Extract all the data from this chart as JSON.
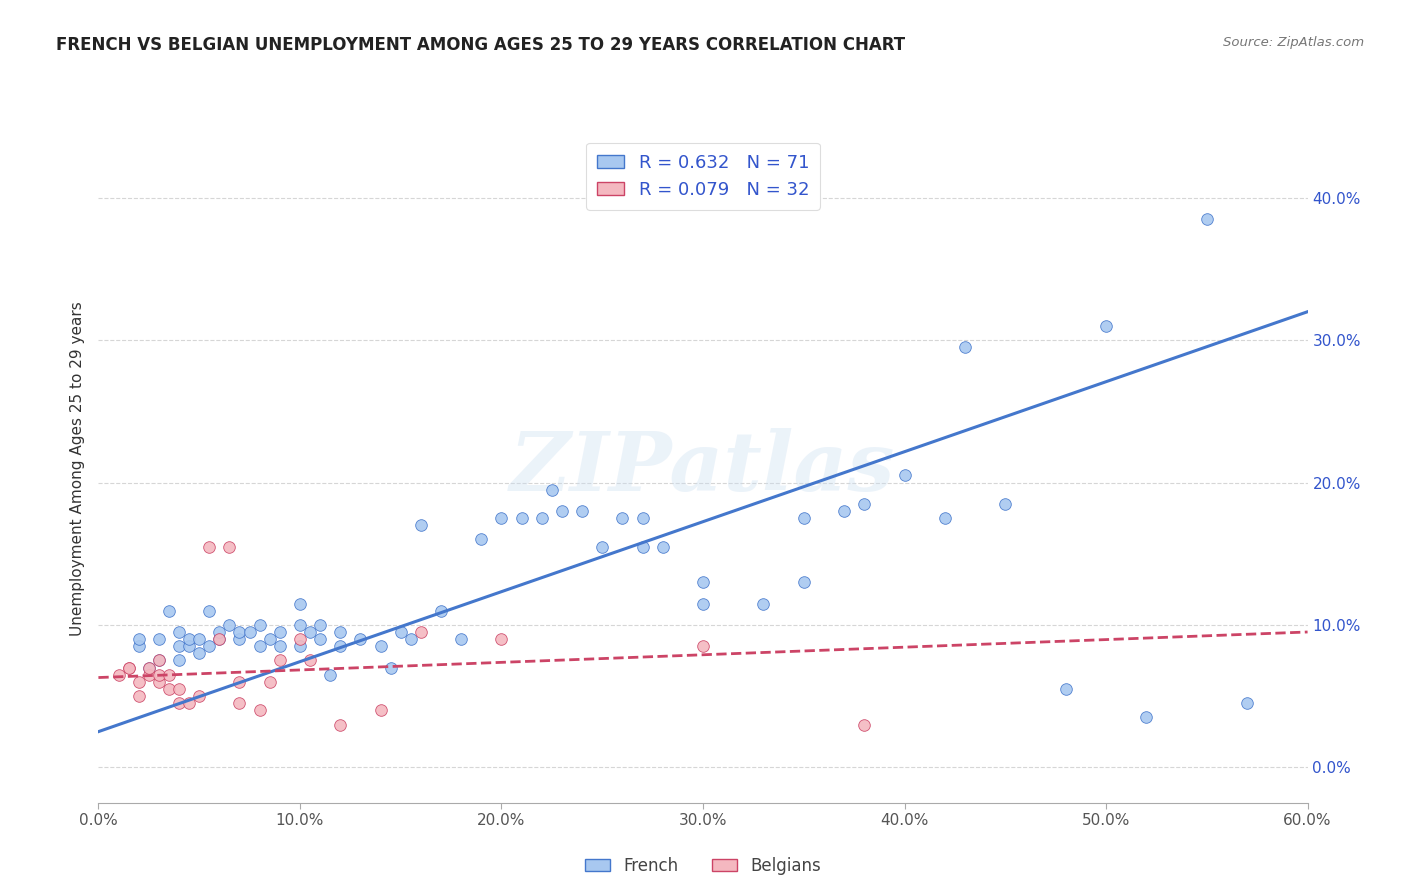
{
  "title": "FRENCH VS BELGIAN UNEMPLOYMENT AMONG AGES 25 TO 29 YEARS CORRELATION CHART",
  "source": "Source: ZipAtlas.com",
  "ylabel": "Unemployment Among Ages 25 to 29 years",
  "xlim": [
    0.0,
    0.6
  ],
  "ylim": [
    -0.025,
    0.445
  ],
  "xticks": [
    0.0,
    0.1,
    0.2,
    0.3,
    0.4,
    0.5,
    0.6
  ],
  "yticks": [
    0.0,
    0.1,
    0.2,
    0.3,
    0.4
  ],
  "ytick_labels": [
    "0.0%",
    "10.0%",
    "20.0%",
    "30.0%",
    "40.0%"
  ],
  "xtick_labels": [
    "0.0%",
    "10.0%",
    "20.0%",
    "30.0%",
    "40.0%",
    "50.0%",
    "60.0%"
  ],
  "french_color": "#a8c8f0",
  "belgian_color": "#f4b8c0",
  "french_line_color": "#4477cc",
  "belgian_line_color": "#cc4466",
  "R_french": 0.632,
  "N_french": 71,
  "R_belgian": 0.079,
  "N_belgian": 32,
  "watermark": "ZIPatlas",
  "background_color": "#ffffff",
  "legend_color": "#3355cc",
  "french_scatter": [
    [
      0.02,
      0.085
    ],
    [
      0.02,
      0.09
    ],
    [
      0.025,
      0.07
    ],
    [
      0.03,
      0.09
    ],
    [
      0.03,
      0.075
    ],
    [
      0.035,
      0.11
    ],
    [
      0.04,
      0.075
    ],
    [
      0.04,
      0.085
    ],
    [
      0.04,
      0.095
    ],
    [
      0.045,
      0.085
    ],
    [
      0.045,
      0.09
    ],
    [
      0.05,
      0.08
    ],
    [
      0.05,
      0.09
    ],
    [
      0.055,
      0.11
    ],
    [
      0.055,
      0.085
    ],
    [
      0.06,
      0.09
    ],
    [
      0.06,
      0.095
    ],
    [
      0.065,
      0.1
    ],
    [
      0.07,
      0.09
    ],
    [
      0.07,
      0.095
    ],
    [
      0.075,
      0.095
    ],
    [
      0.08,
      0.085
    ],
    [
      0.08,
      0.1
    ],
    [
      0.085,
      0.09
    ],
    [
      0.09,
      0.085
    ],
    [
      0.09,
      0.095
    ],
    [
      0.1,
      0.1
    ],
    [
      0.1,
      0.085
    ],
    [
      0.1,
      0.115
    ],
    [
      0.105,
      0.095
    ],
    [
      0.11,
      0.09
    ],
    [
      0.11,
      0.1
    ],
    [
      0.115,
      0.065
    ],
    [
      0.12,
      0.085
    ],
    [
      0.12,
      0.095
    ],
    [
      0.13,
      0.09
    ],
    [
      0.14,
      0.085
    ],
    [
      0.145,
      0.07
    ],
    [
      0.15,
      0.095
    ],
    [
      0.155,
      0.09
    ],
    [
      0.16,
      0.17
    ],
    [
      0.17,
      0.11
    ],
    [
      0.18,
      0.09
    ],
    [
      0.19,
      0.16
    ],
    [
      0.2,
      0.175
    ],
    [
      0.21,
      0.175
    ],
    [
      0.22,
      0.175
    ],
    [
      0.225,
      0.195
    ],
    [
      0.23,
      0.18
    ],
    [
      0.24,
      0.18
    ],
    [
      0.25,
      0.155
    ],
    [
      0.26,
      0.175
    ],
    [
      0.27,
      0.155
    ],
    [
      0.27,
      0.175
    ],
    [
      0.28,
      0.155
    ],
    [
      0.3,
      0.115
    ],
    [
      0.3,
      0.13
    ],
    [
      0.33,
      0.115
    ],
    [
      0.35,
      0.13
    ],
    [
      0.35,
      0.175
    ],
    [
      0.37,
      0.18
    ],
    [
      0.38,
      0.185
    ],
    [
      0.4,
      0.205
    ],
    [
      0.42,
      0.175
    ],
    [
      0.43,
      0.295
    ],
    [
      0.45,
      0.185
    ],
    [
      0.48,
      0.055
    ],
    [
      0.5,
      0.31
    ],
    [
      0.52,
      0.035
    ],
    [
      0.55,
      0.385
    ],
    [
      0.57,
      0.045
    ]
  ],
  "belgian_scatter": [
    [
      0.01,
      0.065
    ],
    [
      0.015,
      0.07
    ],
    [
      0.015,
      0.07
    ],
    [
      0.02,
      0.06
    ],
    [
      0.02,
      0.05
    ],
    [
      0.025,
      0.065
    ],
    [
      0.025,
      0.07
    ],
    [
      0.03,
      0.06
    ],
    [
      0.03,
      0.065
    ],
    [
      0.03,
      0.075
    ],
    [
      0.035,
      0.055
    ],
    [
      0.035,
      0.065
    ],
    [
      0.04,
      0.045
    ],
    [
      0.04,
      0.055
    ],
    [
      0.045,
      0.045
    ],
    [
      0.05,
      0.05
    ],
    [
      0.055,
      0.155
    ],
    [
      0.06,
      0.09
    ],
    [
      0.065,
      0.155
    ],
    [
      0.07,
      0.045
    ],
    [
      0.07,
      0.06
    ],
    [
      0.08,
      0.04
    ],
    [
      0.085,
      0.06
    ],
    [
      0.09,
      0.075
    ],
    [
      0.1,
      0.09
    ],
    [
      0.105,
      0.075
    ],
    [
      0.12,
      0.03
    ],
    [
      0.14,
      0.04
    ],
    [
      0.16,
      0.095
    ],
    [
      0.2,
      0.09
    ],
    [
      0.3,
      0.085
    ],
    [
      0.38,
      0.03
    ]
  ],
  "french_trend_x": [
    0.0,
    0.6
  ],
  "french_trend_y": [
    0.025,
    0.32
  ],
  "belgian_trend_x": [
    0.0,
    0.6
  ],
  "belgian_trend_y": [
    0.063,
    0.095
  ],
  "grid_color": "#cccccc",
  "grid_style": "--",
  "tick_label_color": "#555555",
  "right_tick_color": "#3355cc"
}
